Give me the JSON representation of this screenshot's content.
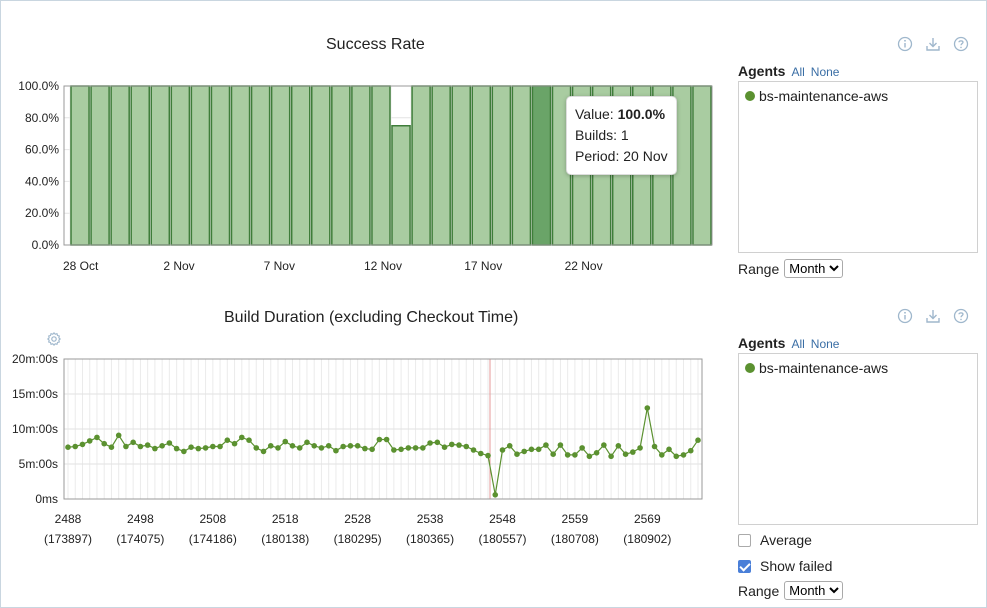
{
  "success_panel": {
    "agents_label": "Agents",
    "all_label": "All",
    "none_label": "None",
    "agent_name": "bs-maintenance-aws",
    "range_label": "Range",
    "range_value": "Month",
    "range_options": [
      "Month"
    ]
  },
  "duration_panel": {
    "agents_label": "Agents",
    "all_label": "All",
    "none_label": "None",
    "agent_name": "bs-maintenance-aws",
    "average_label": "Average",
    "average_checked": false,
    "show_failed_label": "Show failed",
    "show_failed_checked": true,
    "range_label": "Range",
    "range_value": "Month",
    "range_options": [
      "Month"
    ]
  },
  "tooltip": {
    "value_label": "Value:",
    "value": "100.0%",
    "builds_label": "Builds:",
    "builds": "1",
    "period_label": "Period:",
    "period": "20 Nov"
  },
  "icons": [
    "info-icon",
    "download-icon",
    "help-icon",
    "gear-icon"
  ],
  "colors": {
    "bar_fill": "#a9cca1",
    "bar_stroke": "#3f7d3a",
    "bar_highlight": "#6aa468",
    "line": "#5b9130",
    "marker_line": "#e49a9a"
  },
  "chart_data": [
    {
      "type": "bar",
      "title": "Success Rate",
      "x_tick_labels": [
        "28 Oct",
        "2 Nov",
        "7 Nov",
        "12 Nov",
        "17 Nov",
        "22 Nov"
      ],
      "x_tick_index": [
        0,
        5,
        10,
        15,
        20,
        25
      ],
      "y_tick_labels": [
        "100.0%",
        "80.0%",
        "60.0%",
        "40.0%",
        "20.0%",
        "0.0%"
      ],
      "ylim": [
        0,
        100
      ],
      "values": [
        100,
        100,
        100,
        100,
        100,
        100,
        100,
        100,
        100,
        100,
        100,
        100,
        100,
        100,
        100,
        100,
        75,
        100,
        100,
        100,
        100,
        100,
        100,
        100,
        100,
        100,
        100,
        100,
        100,
        100,
        100,
        100
      ],
      "highlight_index": 23,
      "grid": true
    },
    {
      "type": "line",
      "title": "Build Duration (excluding Checkout Time)",
      "y_tick_labels": [
        "20m:00s",
        "15m:00s",
        "10m:00s",
        "5m:00s",
        "0ms"
      ],
      "ylim": [
        0,
        20
      ],
      "y_unit": "minutes",
      "x_tick_labels": [
        {
          "build": "2488",
          "id": "(173897)"
        },
        {
          "build": "2498",
          "id": "(174075)"
        },
        {
          "build": "2508",
          "id": "(174186)"
        },
        {
          "build": "2518",
          "id": "(180138)"
        },
        {
          "build": "2528",
          "id": "(180295)"
        },
        {
          "build": "2538",
          "id": "(180365)"
        },
        {
          "build": "2548",
          "id": "(180557)"
        },
        {
          "build": "2559",
          "id": "(180708)"
        },
        {
          "build": "2569",
          "id": "(180902)"
        }
      ],
      "x_tick_index": [
        0,
        10,
        20,
        30,
        40,
        50,
        60,
        70,
        80
      ],
      "marker_index": 58,
      "values": [
        7.4,
        7.5,
        7.8,
        8.3,
        8.8,
        7.9,
        7.4,
        9.1,
        7.5,
        8.1,
        7.5,
        7.7,
        7.2,
        7.6,
        8.0,
        7.2,
        6.8,
        7.4,
        7.2,
        7.3,
        7.5,
        7.5,
        8.4,
        7.9,
        8.8,
        8.4,
        7.3,
        6.8,
        7.6,
        7.3,
        8.2,
        7.6,
        7.3,
        8.1,
        7.6,
        7.3,
        7.6,
        6.9,
        7.5,
        7.6,
        7.6,
        7.2,
        7.1,
        8.5,
        8.5,
        7.0,
        7.1,
        7.3,
        7.3,
        7.3,
        8.0,
        8.1,
        7.4,
        7.8,
        7.7,
        7.5,
        7.0,
        6.5,
        6.2,
        0.6,
        7.0,
        7.6,
        6.4,
        6.8,
        7.1,
        7.1,
        7.7,
        6.4,
        7.7,
        6.3,
        6.3,
        7.3,
        6.1,
        6.6,
        7.7,
        6.1,
        7.6,
        6.4,
        6.7,
        7.3,
        13.0,
        7.5,
        6.3,
        7.1,
        6.1,
        6.3,
        6.9,
        8.4
      ],
      "grid": true
    }
  ]
}
